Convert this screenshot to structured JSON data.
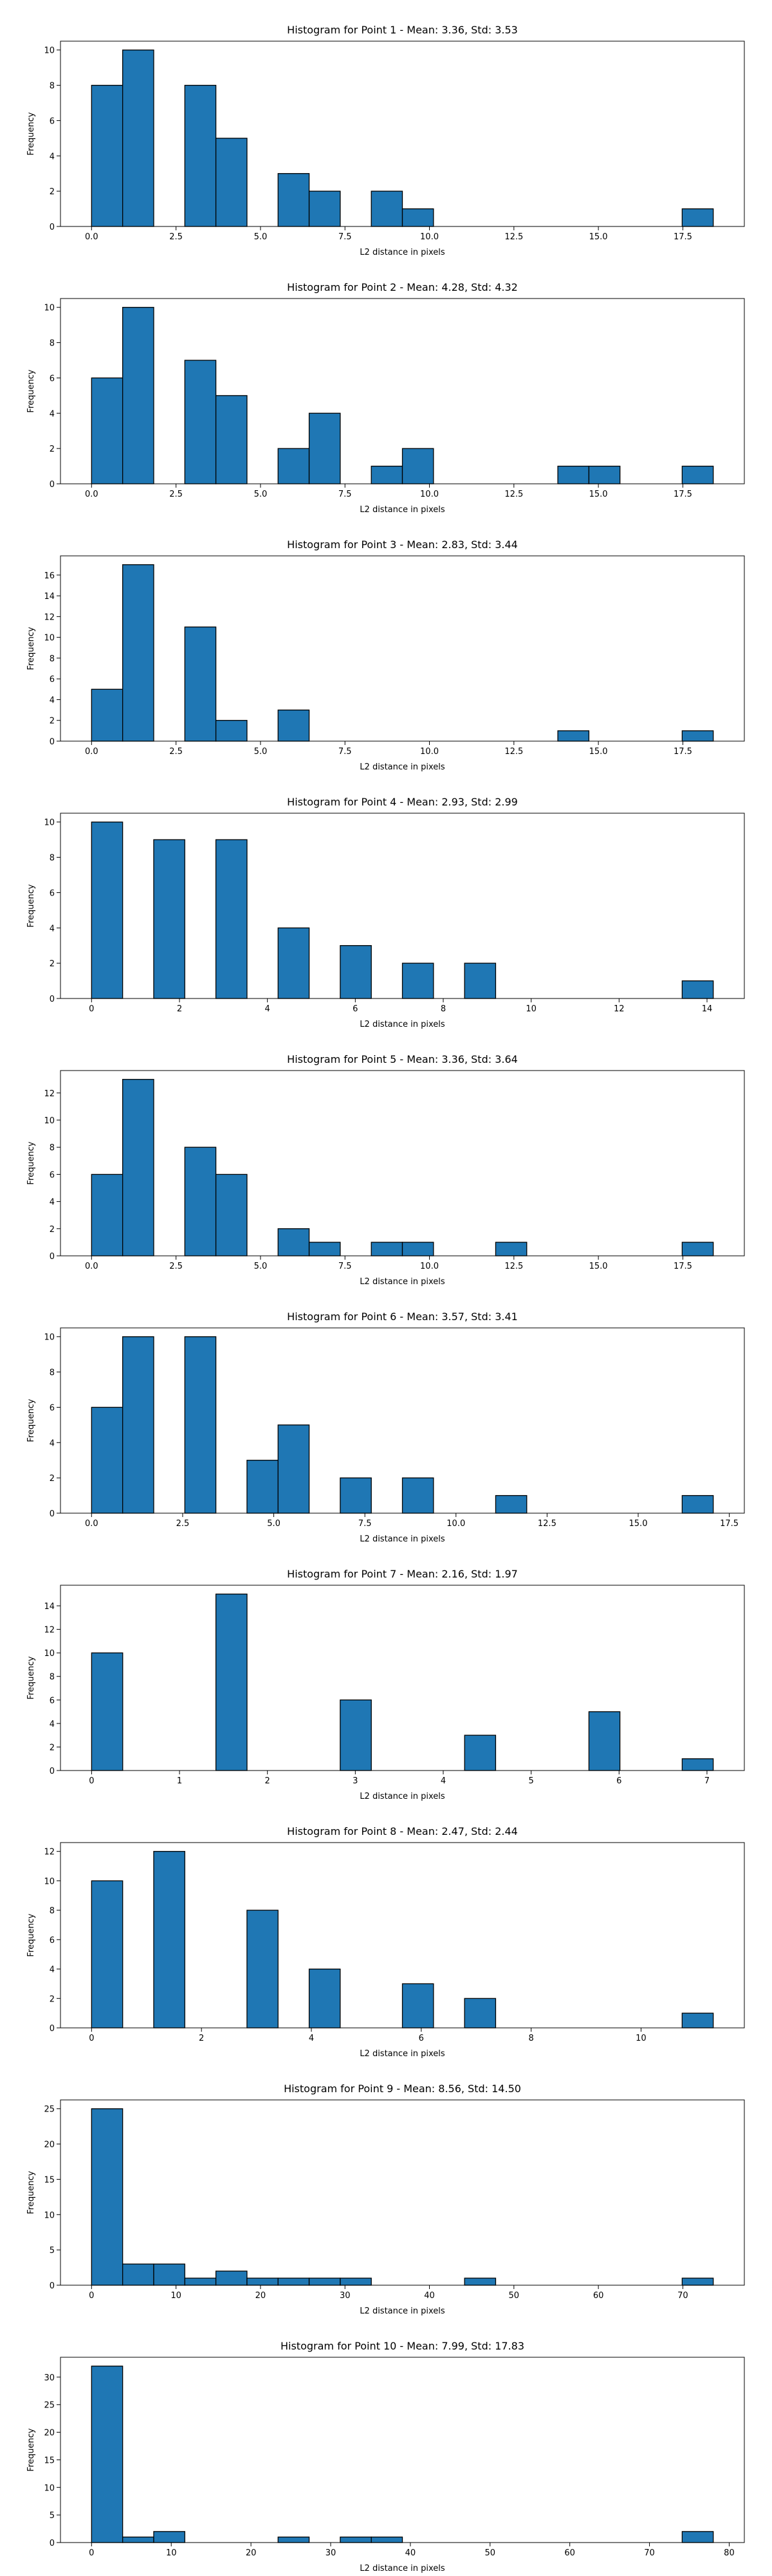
{
  "chart_data": [
    {
      "type": "histogram",
      "title": "Histogram for Point 1 - Mean: 3.36, Std: 3.53",
      "x_label": "L2 distance in pixels",
      "y_label": "Frequency",
      "color": "#1f77b4",
      "bins": [
        0,
        0.92,
        1.84,
        2.76,
        3.68,
        4.6,
        5.52,
        6.44,
        7.36,
        8.28,
        9.2,
        10.12,
        11.04,
        11.96,
        12.88,
        13.8,
        14.72,
        15.64,
        16.56,
        17.48,
        18.4
      ],
      "values": [
        8,
        10,
        0,
        8,
        5,
        0,
        3,
        2,
        0,
        2,
        1,
        0,
        0,
        0,
        0,
        0,
        0,
        0,
        0,
        1
      ],
      "xlim": [
        -0.92,
        19.32
      ],
      "ylim": [
        0,
        10.5
      ],
      "xticks": [
        {
          "value": 0,
          "label": "0.0"
        },
        {
          "value": 2.5,
          "label": "2.5"
        },
        {
          "value": 5,
          "label": "5.0"
        },
        {
          "value": 7.5,
          "label": "7.5"
        },
        {
          "value": 10,
          "label": "10.0"
        },
        {
          "value": 12.5,
          "label": "12.5"
        },
        {
          "value": 15,
          "label": "15.0"
        },
        {
          "value": 17.5,
          "label": "17.5"
        }
      ],
      "yticks": [
        0,
        2,
        4,
        6,
        8,
        10
      ]
    },
    {
      "type": "histogram",
      "title": "Histogram for Point 2 - Mean: 4.28, Std: 4.32",
      "x_label": "L2 distance in pixels",
      "y_label": "Frequency",
      "color": "#1f77b4",
      "bins": [
        0,
        0.92,
        1.84,
        2.76,
        3.68,
        4.6,
        5.52,
        6.44,
        7.36,
        8.28,
        9.2,
        10.12,
        11.04,
        11.96,
        12.88,
        13.8,
        14.72,
        15.64,
        16.56,
        17.48,
        18.4
      ],
      "values": [
        6,
        10,
        0,
        7,
        5,
        0,
        2,
        4,
        0,
        1,
        2,
        0,
        0,
        0,
        0,
        1,
        1,
        0,
        0,
        1
      ],
      "xlim": [
        -0.92,
        19.32
      ],
      "ylim": [
        0,
        10.5
      ],
      "xticks": [
        {
          "value": 0,
          "label": "0.0"
        },
        {
          "value": 2.5,
          "label": "2.5"
        },
        {
          "value": 5,
          "label": "5.0"
        },
        {
          "value": 7.5,
          "label": "7.5"
        },
        {
          "value": 10,
          "label": "10.0"
        },
        {
          "value": 12.5,
          "label": "12.5"
        },
        {
          "value": 15,
          "label": "15.0"
        },
        {
          "value": 17.5,
          "label": "17.5"
        }
      ],
      "yticks": [
        0,
        2,
        4,
        6,
        8,
        10
      ]
    },
    {
      "type": "histogram",
      "title": "Histogram for Point 3 - Mean: 2.83, Std: 3.44",
      "x_label": "L2 distance in pixels",
      "y_label": "Frequency",
      "color": "#1f77b4",
      "bins": [
        0,
        0.92,
        1.84,
        2.76,
        3.68,
        4.6,
        5.52,
        6.44,
        7.36,
        8.28,
        9.2,
        10.12,
        11.04,
        11.96,
        12.88,
        13.8,
        14.72,
        15.64,
        16.56,
        17.48,
        18.4
      ],
      "values": [
        5,
        17,
        0,
        11,
        2,
        0,
        3,
        0,
        0,
        0,
        0,
        0,
        0,
        0,
        0,
        1,
        0,
        0,
        0,
        1
      ],
      "xlim": [
        -0.92,
        19.32
      ],
      "ylim": [
        0,
        17.85
      ],
      "xticks": [
        {
          "value": 0,
          "label": "0.0"
        },
        {
          "value": 2.5,
          "label": "2.5"
        },
        {
          "value": 5,
          "label": "5.0"
        },
        {
          "value": 7.5,
          "label": "7.5"
        },
        {
          "value": 10,
          "label": "10.0"
        },
        {
          "value": 12.5,
          "label": "12.5"
        },
        {
          "value": 15,
          "label": "15.0"
        },
        {
          "value": 17.5,
          "label": "17.5"
        }
      ],
      "yticks": [
        0,
        2,
        4,
        6,
        8,
        10,
        12,
        14,
        16
      ]
    },
    {
      "type": "histogram",
      "title": "Histogram for Point 4 - Mean: 2.93, Std: 2.99",
      "x_label": "L2 distance in pixels",
      "y_label": "Frequency",
      "color": "#1f77b4",
      "bins": [
        0,
        0.707,
        1.414,
        2.121,
        2.828,
        3.536,
        4.243,
        4.95,
        5.657,
        6.364,
        7.071,
        7.778,
        8.485,
        9.192,
        9.9,
        10.607,
        11.314,
        12.021,
        12.728,
        13.435,
        14.142
      ],
      "values": [
        10,
        0,
        9,
        0,
        9,
        0,
        4,
        0,
        3,
        0,
        2,
        0,
        2,
        0,
        0,
        0,
        0,
        0,
        0,
        1
      ],
      "xlim": [
        -0.707,
        14.849
      ],
      "ylim": [
        0,
        10.5
      ],
      "xticks": [
        0,
        2,
        4,
        6,
        8,
        10,
        12,
        14
      ],
      "yticks": [
        0,
        2,
        4,
        6,
        8,
        10
      ]
    },
    {
      "type": "histogram",
      "title": "Histogram for Point 5 - Mean: 3.36, Std: 3.64",
      "x_label": "L2 distance in pixels",
      "y_label": "Frequency",
      "color": "#1f77b4",
      "bins": [
        0,
        0.92,
        1.84,
        2.76,
        3.68,
        4.6,
        5.52,
        6.44,
        7.36,
        8.28,
        9.2,
        10.12,
        11.04,
        11.96,
        12.88,
        13.8,
        14.72,
        15.64,
        16.56,
        17.48,
        18.4
      ],
      "values": [
        6,
        13,
        0,
        8,
        6,
        0,
        2,
        1,
        0,
        1,
        1,
        0,
        0,
        1,
        0,
        0,
        0,
        0,
        0,
        1
      ],
      "xlim": [
        -0.92,
        19.32
      ],
      "ylim": [
        0,
        13.65
      ],
      "xticks": [
        {
          "value": 0,
          "label": "0.0"
        },
        {
          "value": 2.5,
          "label": "2.5"
        },
        {
          "value": 5,
          "label": "5.0"
        },
        {
          "value": 7.5,
          "label": "7.5"
        },
        {
          "value": 10,
          "label": "10.0"
        },
        {
          "value": 12.5,
          "label": "12.5"
        },
        {
          "value": 15,
          "label": "15.0"
        },
        {
          "value": 17.5,
          "label": "17.5"
        }
      ],
      "yticks": [
        0,
        2,
        4,
        6,
        8,
        10,
        12
      ]
    },
    {
      "type": "histogram",
      "title": "Histogram for Point 6 - Mean: 3.57, Std: 3.41",
      "x_label": "L2 distance in pixels",
      "y_label": "Frequency",
      "color": "#1f77b4",
      "bins": [
        0,
        0.853,
        1.706,
        2.559,
        3.412,
        4.265,
        5.118,
        5.971,
        6.824,
        7.677,
        8.53,
        9.383,
        10.236,
        11.089,
        11.942,
        12.795,
        13.648,
        14.501,
        15.354,
        16.207,
        17.06
      ],
      "values": [
        6,
        10,
        0,
        10,
        0,
        3,
        5,
        0,
        2,
        0,
        2,
        0,
        0,
        1,
        0,
        0,
        0,
        0,
        0,
        1
      ],
      "xlim": [
        -0.853,
        17.913
      ],
      "ylim": [
        0,
        10.5
      ],
      "xticks": [
        {
          "value": 0,
          "label": "0.0"
        },
        {
          "value": 2.5,
          "label": "2.5"
        },
        {
          "value": 5,
          "label": "5.0"
        },
        {
          "value": 7.5,
          "label": "7.5"
        },
        {
          "value": 10,
          "label": "10.0"
        },
        {
          "value": 12.5,
          "label": "12.5"
        },
        {
          "value": 15,
          "label": "15.0"
        },
        {
          "value": 17.5,
          "label": "17.5"
        }
      ],
      "yticks": [
        0,
        2,
        4,
        6,
        8,
        10
      ]
    },
    {
      "type": "histogram",
      "title": "Histogram for Point 7 - Mean: 2.16, Std: 1.97",
      "x_label": "L2 distance in pixels",
      "y_label": "Frequency",
      "color": "#1f77b4",
      "bins": [
        0,
        0.354,
        0.707,
        1.061,
        1.414,
        1.768,
        2.121,
        2.475,
        2.828,
        3.182,
        3.536,
        3.889,
        4.243,
        4.596,
        4.95,
        5.303,
        5.657,
        6.01,
        6.364,
        6.718,
        7.071
      ],
      "values": [
        10,
        0,
        0,
        0,
        15,
        0,
        0,
        0,
        6,
        0,
        0,
        0,
        3,
        0,
        0,
        0,
        5,
        0,
        0,
        1
      ],
      "xlim": [
        -0.354,
        7.425
      ],
      "ylim": [
        0,
        15.75
      ],
      "xticks": [
        0,
        1,
        2,
        3,
        4,
        5,
        6,
        7
      ],
      "yticks": [
        0,
        2,
        4,
        6,
        8,
        10,
        12,
        14
      ]
    },
    {
      "type": "histogram",
      "title": "Histogram for Point 8 - Mean: 2.47, Std: 2.44",
      "x_label": "L2 distance in pixels",
      "y_label": "Frequency",
      "color": "#1f77b4",
      "bins": [
        0,
        0.566,
        1.131,
        1.697,
        2.263,
        2.828,
        3.394,
        3.96,
        4.525,
        5.091,
        5.657,
        6.223,
        6.788,
        7.354,
        7.92,
        8.485,
        9.051,
        9.617,
        10.182,
        10.748,
        11.314
      ],
      "values": [
        10,
        0,
        12,
        0,
        0,
        8,
        0,
        4,
        0,
        0,
        3,
        0,
        2,
        0,
        0,
        0,
        0,
        0,
        0,
        1
      ],
      "xlim": [
        -0.566,
        11.88
      ],
      "ylim": [
        0,
        12.6
      ],
      "xticks": [
        0,
        2,
        4,
        6,
        8,
        10
      ],
      "yticks": [
        0,
        2,
        4,
        6,
        8,
        10,
        12
      ]
    },
    {
      "type": "histogram",
      "title": "Histogram for Point 9 - Mean: 8.56, Std: 14.50",
      "x_label": "L2 distance in pixels",
      "y_label": "Frequency",
      "color": "#1f77b4",
      "bins": [
        0,
        3.68,
        7.36,
        11.04,
        14.72,
        18.4,
        22.08,
        25.76,
        29.44,
        33.12,
        36.8,
        40.48,
        44.16,
        47.84,
        51.52,
        55.2,
        58.88,
        62.56,
        66.24,
        69.92,
        73.6
      ],
      "values": [
        25,
        3,
        3,
        1,
        2,
        1,
        1,
        1,
        1,
        0,
        0,
        0,
        1,
        0,
        0,
        0,
        0,
        0,
        0,
        1
      ],
      "xlim": [
        -3.68,
        77.28
      ],
      "ylim": [
        0,
        26.25
      ],
      "xticks": [
        0,
        10,
        20,
        30,
        40,
        50,
        60,
        70
      ],
      "yticks": [
        0,
        5,
        10,
        15,
        20,
        25
      ]
    },
    {
      "type": "histogram",
      "title": "Histogram for Point 10 - Mean: 7.99, Std: 17.83",
      "x_label": "L2 distance in pixels",
      "y_label": "Frequency",
      "color": "#1f77b4",
      "bins": [
        0,
        3.9,
        7.8,
        11.7,
        15.6,
        19.5,
        23.4,
        27.3,
        31.2,
        35.1,
        39,
        42.9,
        46.8,
        50.7,
        54.6,
        58.5,
        62.4,
        66.3,
        70.2,
        74.1,
        78
      ],
      "values": [
        32,
        1,
        2,
        0,
        0,
        0,
        1,
        0,
        1,
        1,
        0,
        0,
        0,
        0,
        0,
        0,
        0,
        0,
        0,
        2
      ],
      "xlim": [
        -3.9,
        81.9
      ],
      "ylim": [
        0,
        33.6
      ],
      "xticks": [
        0,
        10,
        20,
        30,
        40,
        50,
        60,
        70,
        80
      ],
      "yticks": [
        0,
        5,
        10,
        15,
        20,
        25,
        30
      ]
    }
  ]
}
